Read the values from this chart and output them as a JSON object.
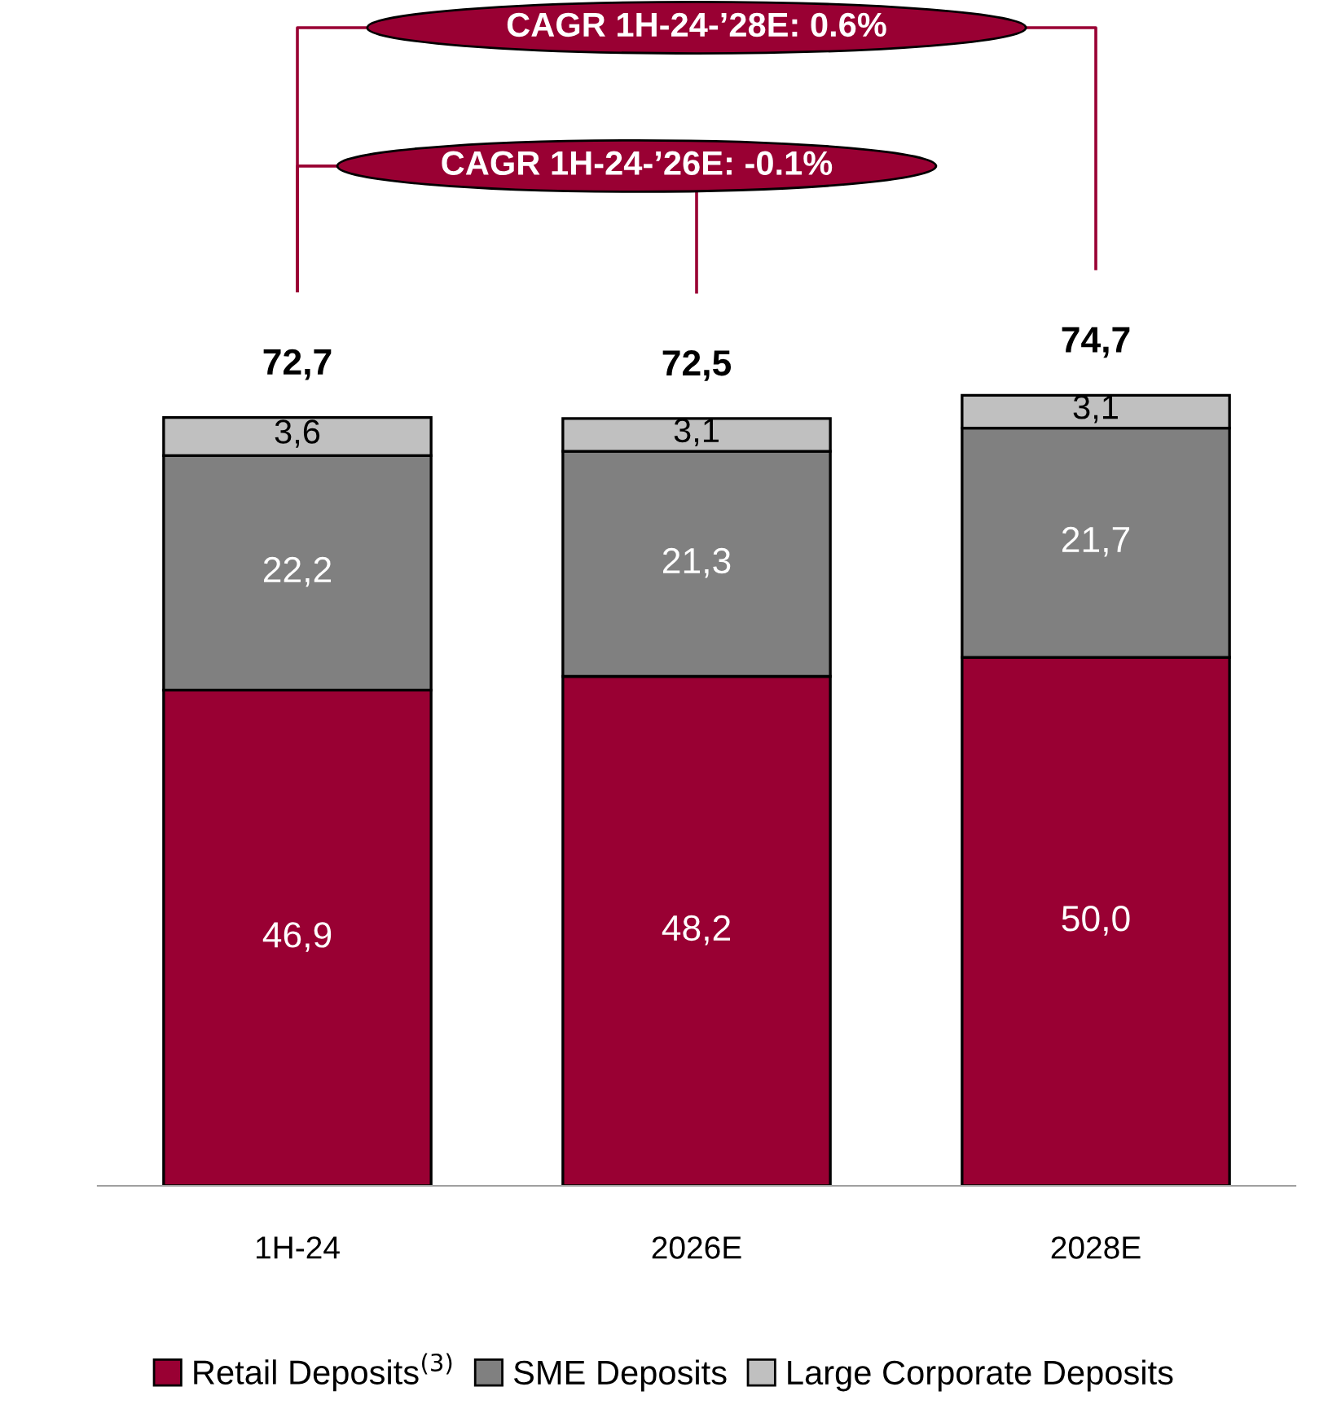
{
  "chart_data": {
    "type": "bar",
    "stacked": true,
    "categories": [
      "1H-24",
      "2026E",
      "2028E"
    ],
    "series": [
      {
        "name": "Retail Deposits$^{(3)}$",
        "color": "#990033",
        "values": [
          46.9,
          48.2,
          50.0
        ],
        "value_labels": [
          "46,9",
          "48,2",
          "50,0"
        ]
      },
      {
        "name": "SME Deposits",
        "color": "#808080",
        "values": [
          22.2,
          21.3,
          21.7
        ],
        "value_labels": [
          "22,2",
          "21,3",
          "21,7"
        ]
      },
      {
        "name": "Large Corporate Deposits",
        "color": "#c0c0c0",
        "values": [
          3.6,
          3.1,
          3.1
        ],
        "value_labels": [
          "3,6",
          "3,1",
          "3,1"
        ]
      }
    ],
    "totals": [
      "72,7",
      "72,5",
      "74,7"
    ],
    "annotations": [
      "CAGR 1H-24-’28E: 0.6%",
      "CAGR 1H-24-’26E: -0.1%"
    ],
    "legend": "bottom"
  }
}
